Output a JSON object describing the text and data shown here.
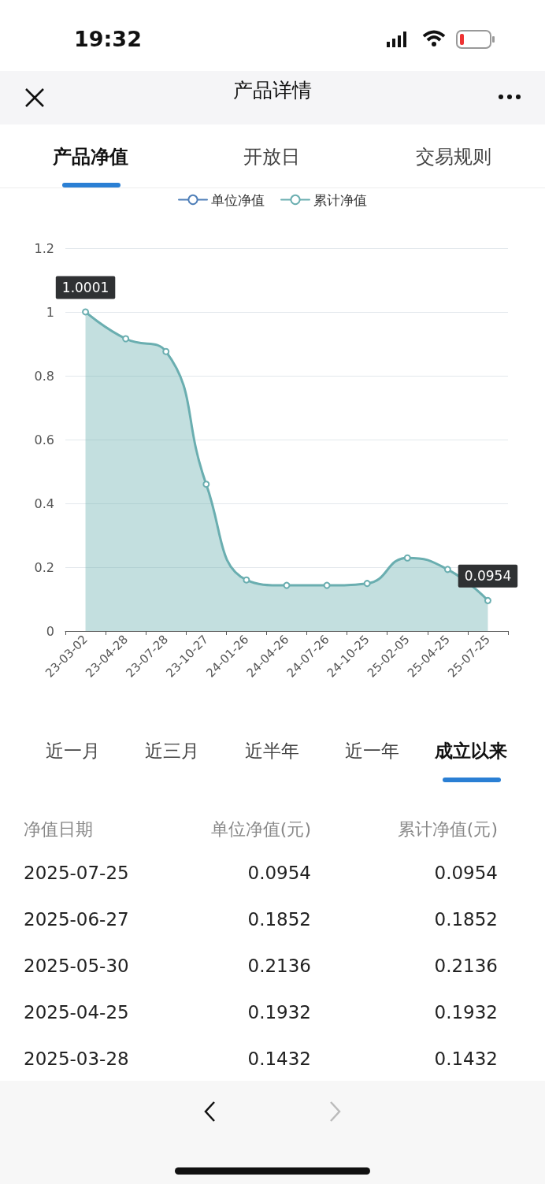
{
  "chart_data": {
    "type": "area",
    "title": "产品详情",
    "categories": [
      "23-03-02",
      "23-04-28",
      "23-07-28",
      "23-10-27",
      "24-01-26",
      "24-04-26",
      "24-07-26",
      "24-10-25",
      "25-02-05",
      "25-04-25",
      "25-07-25"
    ],
    "series": [
      {
        "name": "单位净值",
        "type": "line",
        "color": "#4f7fb8",
        "values": [
          null,
          null,
          null,
          null,
          null,
          null,
          null,
          null,
          null,
          null,
          null
        ]
      },
      {
        "name": "累计净值",
        "color": "#6aaeb0",
        "values": [
          1.0001,
          0.916,
          0.876,
          0.46,
          0.16,
          0.143,
          0.143,
          0.149,
          0.229,
          0.193,
          0.0954
        ],
        "value_labels": [
          "1.0001",
          null,
          null,
          null,
          null,
          null,
          null,
          null,
          null,
          null,
          "0.0954"
        ]
      }
    ],
    "ylim": [
      0,
      1.2
    ],
    "yticks": [
      0,
      0.2,
      0.4,
      0.6,
      0.8,
      1,
      1.2
    ],
    "grid": "y",
    "legend": "top",
    "marker": "circle",
    "line_style": "solid",
    "annotations": [
      "19:32",
      "产品净值",
      "开放日",
      "交易规则",
      "近一月",
      "近三月",
      "近半年",
      "近一年",
      "成立以来",
      "净值日期",
      "单位净值(元)",
      "累计净值(元)",
      "2025-07-25",
      "0.0954",
      "0.0954",
      "2025-06-27",
      "0.1852",
      "0.1852",
      "2025-05-30",
      "0.2136",
      "0.2136",
      "2025-04-25",
      "0.1932",
      "0.1932",
      "2025-03-28",
      "0.1432",
      "0.1432"
    ]
  }
}
